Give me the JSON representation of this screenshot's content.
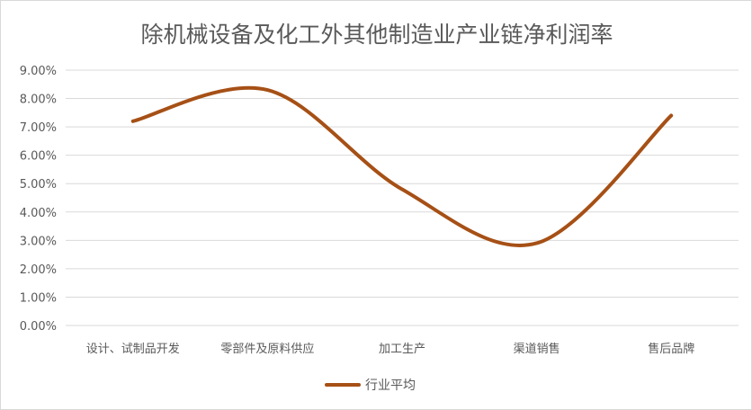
{
  "chart_data": {
    "type": "line",
    "title": "除机械设备及化工外其他制造业产业链净利润率",
    "categories": [
      "设计、试制品开发",
      "零部件及原料供应",
      "加工生产",
      "渠道销售",
      "售后品牌"
    ],
    "series": [
      {
        "name": "行业平均",
        "values": [
          0.072,
          0.083,
          0.048,
          0.029,
          0.074
        ]
      }
    ],
    "ylim": [
      0,
      0.09
    ],
    "yticks": [
      0,
      0.01,
      0.02,
      0.03,
      0.04,
      0.05,
      0.06,
      0.07,
      0.08,
      0.09
    ],
    "ytick_labels": [
      "0.00%",
      "1.00%",
      "2.00%",
      "3.00%",
      "4.00%",
      "5.00%",
      "6.00%",
      "7.00%",
      "8.00%",
      "9.00%"
    ],
    "grid": true,
    "smooth": true,
    "legend_position": "bottom",
    "line_color": "#a65016",
    "gridline_color": "#d9d9d9",
    "xlabel": "",
    "ylabel": ""
  }
}
